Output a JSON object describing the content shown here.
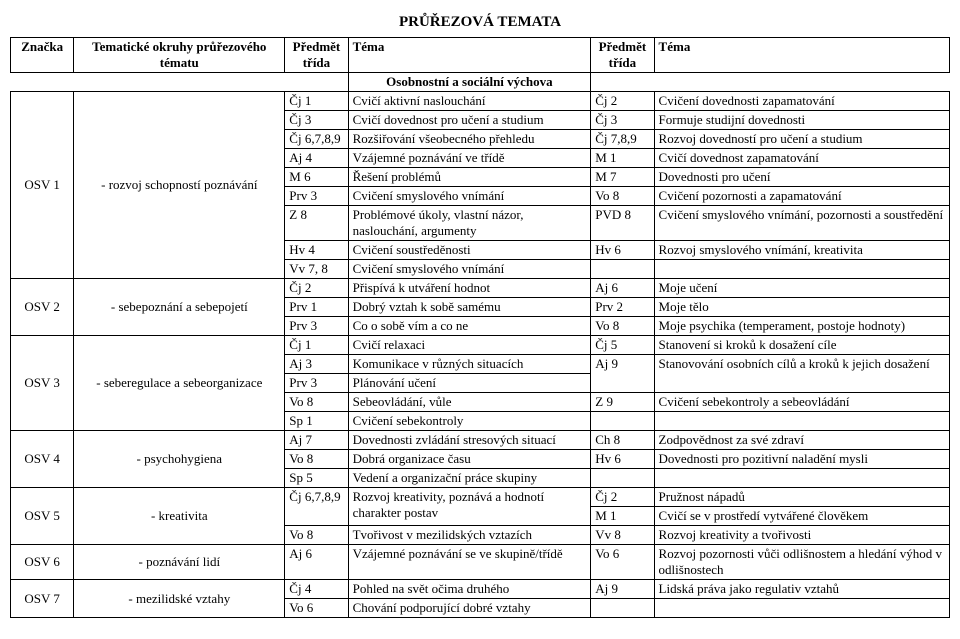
{
  "title": "PRŮŘEZOVÁ TEMATA",
  "header": {
    "c0": "Značka",
    "c1": "Tematické okruhy průřezového tématu",
    "c2": "Předmět třída",
    "c3": "Téma",
    "c4": "Předmět třída",
    "c5": "Téma"
  },
  "section": "Osobnostní a sociální výchova",
  "groups": [
    {
      "znacka": "OSV 1",
      "okruh": "- rozvoj schopností poznávání",
      "rows": [
        {
          "a": "Čj 1",
          "b": "Cvičí aktivní naslouchání",
          "c": "Čj 2",
          "d": "Cvičení dovednosti zapamatování"
        },
        {
          "a": "Čj 3",
          "b": "Cvičí dovednost pro učení a studium",
          "c": "Čj 3",
          "d": "Formuje studijní dovednosti"
        },
        {
          "a": "Čj 6,7,8,9",
          "b": "Rozšiřování všeobecného přehledu",
          "c": "Čj 7,8,9",
          "d": "Rozvoj dovedností pro učení a studium"
        },
        {
          "a": "Aj 4",
          "b": "Vzájemné poznávání ve třídě",
          "c": "M 1",
          "d": "Cvičí dovednost zapamatování"
        },
        {
          "a": "M 6",
          "b": "Řešení problémů",
          "c": "M 7",
          "d": "Dovednosti pro učení"
        },
        {
          "a": "Prv 3",
          "b": "Cvičení smyslového vnímání",
          "c": "Vo 8",
          "d": "Cvičení pozornosti a zapamatování"
        },
        {
          "a": "Z 8",
          "b": "Problémové úkoly, vlastní názor, naslouchání, argumenty",
          "c": "PVD 8",
          "d": "Cvičení smyslového vnímání, pozornosti a soustředění"
        },
        {
          "a": "Hv 4",
          "b": "Cvičení soustředěnosti",
          "c": "Hv 6",
          "d": "Rozvoj smyslového vnímání, kreativita"
        },
        {
          "a": "Vv 7, 8",
          "b": "Cvičení smyslového vnímání",
          "c": "",
          "d": ""
        }
      ]
    },
    {
      "znacka": "OSV 2",
      "okruh": "- sebepoznání a sebepojetí",
      "rows": [
        {
          "a": "Čj 2",
          "b": "Přispívá k utváření hodnot",
          "c": "Aj 6",
          "d": "Moje učení"
        },
        {
          "a": "Prv 1",
          "b": "Dobrý vztah k sobě samému",
          "c": "Prv 2",
          "d": "Moje tělo"
        },
        {
          "a": "Prv 3",
          "b": "Co o sobě vím a co ne",
          "c": "Vo 8",
          "d": "Moje psychika (temperament, postoje hodnoty)"
        }
      ]
    },
    {
      "znacka": "OSV 3",
      "okruh": "- seberegulace a sebeorganizace",
      "rows": [
        {
          "a": "Čj 1",
          "b": "Cvičí relaxaci",
          "c": "Čj 5",
          "d": "Stanovení si kroků k dosažení cíle"
        },
        {
          "a": "Aj 3",
          "b": "Komunikace v různých situacích",
          "c": "Aj 9",
          "d": "Stanovování osobních cílů a kroků"
        },
        {
          "a": "Prv 3",
          "b": "Plánování učení",
          "c": "",
          "d": "k jejich dosažení"
        },
        {
          "a": "Vo 8",
          "b": "Sebeovládání, vůle",
          "c": "Z 9",
          "d": "Cvičení sebekontroly a sebeovládání"
        },
        {
          "a": "Sp 1",
          "b": "Cvičení sebekontroly",
          "c": "",
          "d": ""
        }
      ]
    },
    {
      "znacka": "OSV 4",
      "okruh": "- psychohygiena",
      "rows": [
        {
          "a": "Aj 7",
          "b": "Dovednosti zvládání stresových situací",
          "c": "Ch 8",
          "d": "Zodpovědnost za své zdraví"
        },
        {
          "a": "Vo 8",
          "b": "Dobrá organizace času",
          "c": "Hv 6",
          "d": "Dovednosti pro pozitivní naladění mysli"
        },
        {
          "a": "Sp 5",
          "b": "Vedení a organizační práce skupiny",
          "c": "",
          "d": ""
        }
      ]
    },
    {
      "znacka": "OSV 5",
      "okruh": "- kreativita",
      "rows": [
        {
          "a": "Čj 6,7,8,9",
          "b": "Rozvoj kreativity, poznává a hodnotí charakter postav",
          "c": "Čj 2",
          "d": "Pružnost nápadů"
        },
        {
          "a": "",
          "b": "",
          "c": "M 1",
          "d": "Cvičí se v prostředí vytvářené člověkem"
        },
        {
          "a": "Vo 8",
          "b": "Tvořivost v mezilidských vztazích",
          "c": "Vv 8",
          "d": "Rozvoj kreativity a tvořivosti"
        }
      ]
    },
    {
      "znacka": "OSV 6",
      "okruh": "- poznávání lidí",
      "rows": [
        {
          "a": "Aj 6",
          "b": "Vzájemné poznávání se ve skupině/třídě",
          "c": "Vo 6",
          "d": "Rozvoj pozornosti vůči odlišnostem a hledání výhod v odlišnostech"
        }
      ]
    },
    {
      "znacka": "OSV 7",
      "okruh": "- mezilidské vztahy",
      "rows": [
        {
          "a": "Čj 4",
          "b": "Pohled na svět očima druhého",
          "c": "Aj 9",
          "d": "Lidská práva jako regulativ vztahů"
        },
        {
          "a": "Vo 6",
          "b": "Chování podporující dobré vztahy",
          "c": "",
          "d": ""
        }
      ]
    }
  ]
}
